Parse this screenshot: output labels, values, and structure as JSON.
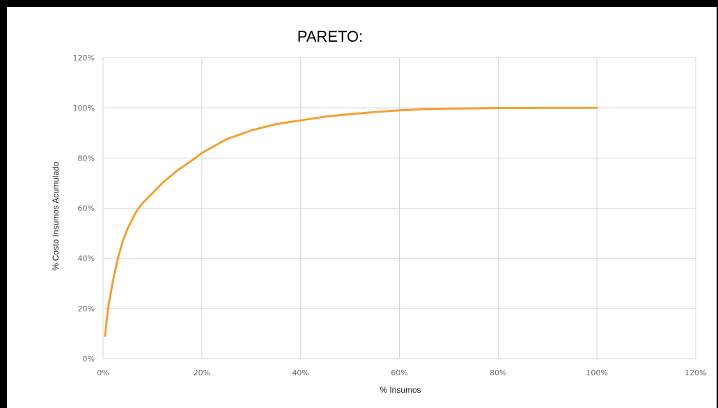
{
  "chart_data": {
    "type": "line",
    "title": "PARETO:",
    "xlabel": "% Insumos",
    "ylabel": "% Costo Insumos Acumulado",
    "xlim": [
      0,
      120
    ],
    "ylim": [
      0,
      120
    ],
    "x_ticks": [
      "0%",
      "20%",
      "40%",
      "60%",
      "80%",
      "100%",
      "120%"
    ],
    "y_ticks": [
      "0%",
      "20%",
      "40%",
      "60%",
      "80%",
      "100%",
      "120%"
    ],
    "grid": true,
    "legend": "none",
    "series": [
      {
        "color": "#f5a030",
        "x": [
          0.4,
          1,
          2,
          3,
          4,
          5,
          6,
          7,
          8,
          10,
          12,
          15,
          18,
          20,
          25,
          30,
          35,
          40,
          45,
          50,
          55,
          60,
          65,
          70,
          80,
          90,
          100
        ],
        "y": [
          9,
          20,
          31,
          40,
          47,
          52,
          56,
          59.5,
          62,
          66,
          70,
          75,
          79,
          82,
          87.5,
          91,
          93.5,
          95,
          96.5,
          97.5,
          98.3,
          99,
          99.5,
          99.7,
          99.9,
          99.95,
          100
        ]
      }
    ]
  }
}
